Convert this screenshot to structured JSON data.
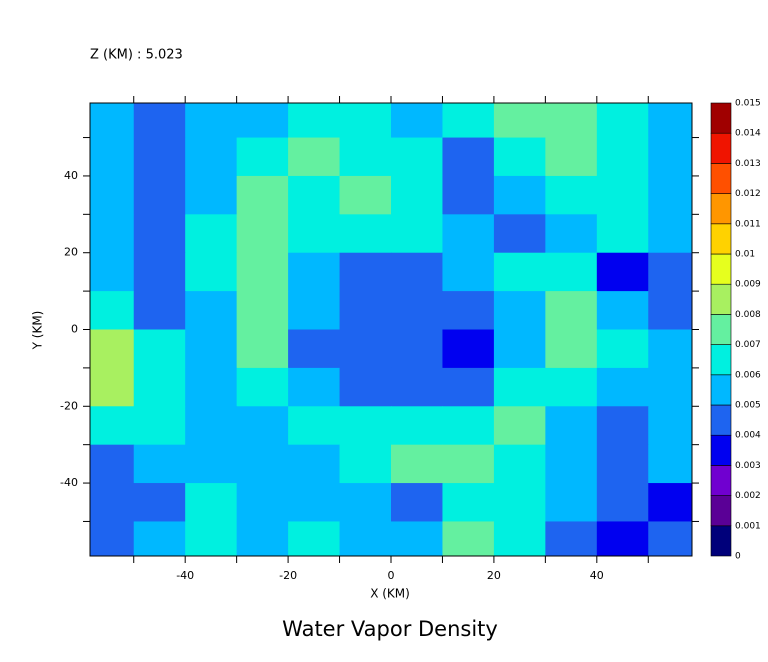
{
  "chart_data": {
    "type": "contour",
    "title": "Water Vapor Density",
    "subtitle": "Z (KM) : 5.023",
    "x_label": "X (KM)",
    "y_label": "Y (KM)",
    "xlim": [
      -58.5,
      58.5
    ],
    "ylim": [
      -59,
      59
    ],
    "xticks": [
      -40,
      -20,
      0,
      20,
      40
    ],
    "yticks": [
      -40,
      -20,
      0,
      20,
      40
    ],
    "xminorticks": [
      -50,
      -30,
      -10,
      10,
      30,
      50
    ],
    "yminorticks": [
      -50,
      -30,
      -10,
      10,
      30,
      50
    ],
    "x": [
      -55,
      -45,
      -35,
      -25,
      -15,
      -5,
      5,
      15,
      25,
      35,
      45,
      55
    ],
    "y": [
      55,
      45,
      35,
      25,
      15,
      5,
      -5,
      -15,
      -25,
      -35,
      -45,
      -55
    ],
    "z": [
      [
        0.0055,
        0.0045,
        0.0055,
        0.0055,
        0.0065,
        0.0065,
        0.0055,
        0.0065,
        0.0075,
        0.0075,
        0.0065,
        0.0055
      ],
      [
        0.0055,
        0.0045,
        0.0055,
        0.0065,
        0.0075,
        0.0065,
        0.0065,
        0.0045,
        0.0065,
        0.0075,
        0.0065,
        0.0055
      ],
      [
        0.0055,
        0.0045,
        0.0055,
        0.0075,
        0.0065,
        0.0075,
        0.0065,
        0.0045,
        0.0055,
        0.0065,
        0.0065,
        0.0055
      ],
      [
        0.0055,
        0.0045,
        0.0065,
        0.0075,
        0.0065,
        0.0065,
        0.0065,
        0.0055,
        0.0045,
        0.0055,
        0.0065,
        0.0055
      ],
      [
        0.0055,
        0.0045,
        0.0065,
        0.0075,
        0.0055,
        0.0045,
        0.0045,
        0.0055,
        0.0065,
        0.0065,
        0.0035,
        0.0045
      ],
      [
        0.0065,
        0.0045,
        0.0055,
        0.0075,
        0.0055,
        0.0045,
        0.0045,
        0.0045,
        0.0055,
        0.0075,
        0.0055,
        0.0045
      ],
      [
        0.0085,
        0.0065,
        0.0055,
        0.0075,
        0.0045,
        0.0045,
        0.0045,
        0.0035,
        0.0055,
        0.0075,
        0.0065,
        0.0055
      ],
      [
        0.0085,
        0.0065,
        0.0055,
        0.0065,
        0.0055,
        0.0045,
        0.0045,
        0.0045,
        0.0065,
        0.0065,
        0.0055,
        0.0055
      ],
      [
        0.0065,
        0.0065,
        0.0055,
        0.0055,
        0.0065,
        0.0065,
        0.0065,
        0.0065,
        0.0075,
        0.0055,
        0.0045,
        0.0055
      ],
      [
        0.0045,
        0.0055,
        0.0055,
        0.0055,
        0.0055,
        0.0065,
        0.0075,
        0.0075,
        0.0065,
        0.0055,
        0.0045,
        0.0055
      ],
      [
        0.0045,
        0.0045,
        0.0065,
        0.0055,
        0.0055,
        0.0055,
        0.0045,
        0.0065,
        0.0065,
        0.0055,
        0.0045,
        0.0035
      ],
      [
        0.0045,
        0.0055,
        0.0065,
        0.0055,
        0.0065,
        0.0055,
        0.0055,
        0.0075,
        0.0065,
        0.0045,
        0.0035,
        0.0045
      ]
    ],
    "levels": [
      0,
      0.001,
      0.002,
      0.003,
      0.004,
      0.005,
      0.006,
      0.007,
      0.008,
      0.009,
      0.01,
      0.011,
      0.012,
      0.013,
      0.014,
      0.015
    ],
    "colors": [
      "#00007a",
      "#5a0096",
      "#7000d0",
      "#0000f0",
      "#1e64f0",
      "#00b8ff",
      "#00f0e0",
      "#64f0a0",
      "#a8f060",
      "#e6ff1e",
      "#ffd200",
      "#ff9600",
      "#ff5000",
      "#f01400",
      "#a00000"
    ]
  }
}
